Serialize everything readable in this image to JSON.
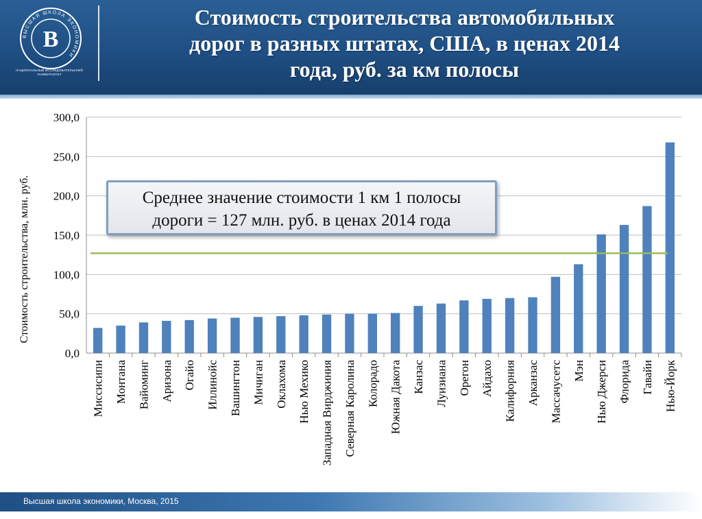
{
  "header": {
    "title_lines": [
      "Стоимость строительства автомобильных",
      "дорог в разных штатах, США, в ценах 2014",
      "года, руб. за км полосы"
    ],
    "logo_caption": "НАЦИОНАЛЬНЫЙ ИССЛЕДОВАТЕЛЬСКИЙ УНИВЕРСИТЕТ",
    "logo_ring_text": "ВЫСШАЯ ШКОЛА ЭКОНОМИКИ"
  },
  "callout": {
    "line1": "Среднее значение стоимости 1 км 1 полосы",
    "line2": "дороги = 127 млн. руб. в ценах 2014 года"
  },
  "footer": {
    "text": "Высшая школа экономики, Москва, 2015"
  },
  "colors": {
    "header_blue": "#1f4f84",
    "bar": "#4f81bd",
    "average_line": "#9bbb59",
    "grid": "#bfbfbf"
  },
  "chart_data": {
    "type": "bar",
    "ylabel": "Стоимость строительства, млн. руб.",
    "xlabel": "",
    "ylim": [
      0,
      300
    ],
    "yticks": [
      "0,0",
      "50,0",
      "100,0",
      "150,0",
      "200,0",
      "250,0",
      "300,0"
    ],
    "ytick_values": [
      0,
      50,
      100,
      150,
      200,
      250,
      300
    ],
    "grid": true,
    "categories": [
      "Миссисипи",
      "Монтана",
      "Вайоминг",
      "Аризона",
      "Огайо",
      "Иллинойс",
      "Вашингтон",
      "Мичиган",
      "Оклахома",
      "Нью Мехико",
      "Западная Вирджиния",
      "Северная Каролина",
      "Колорадо",
      "Южная Дакота",
      "Канзас",
      "Луизиана",
      "Орегон",
      "Айдахо",
      "Калифорния",
      "Арканзас",
      "Массачусетс",
      "Мэн",
      "Нью Джерси",
      "Флорида",
      "Гавайи",
      "Нью-Йорк"
    ],
    "values": [
      32,
      35,
      39,
      41,
      42,
      44,
      45,
      46,
      47,
      48,
      49,
      50,
      50,
      51,
      60,
      63,
      67,
      69,
      70,
      71,
      97,
      113,
      151,
      163,
      187,
      268
    ],
    "average_line": 127
  }
}
